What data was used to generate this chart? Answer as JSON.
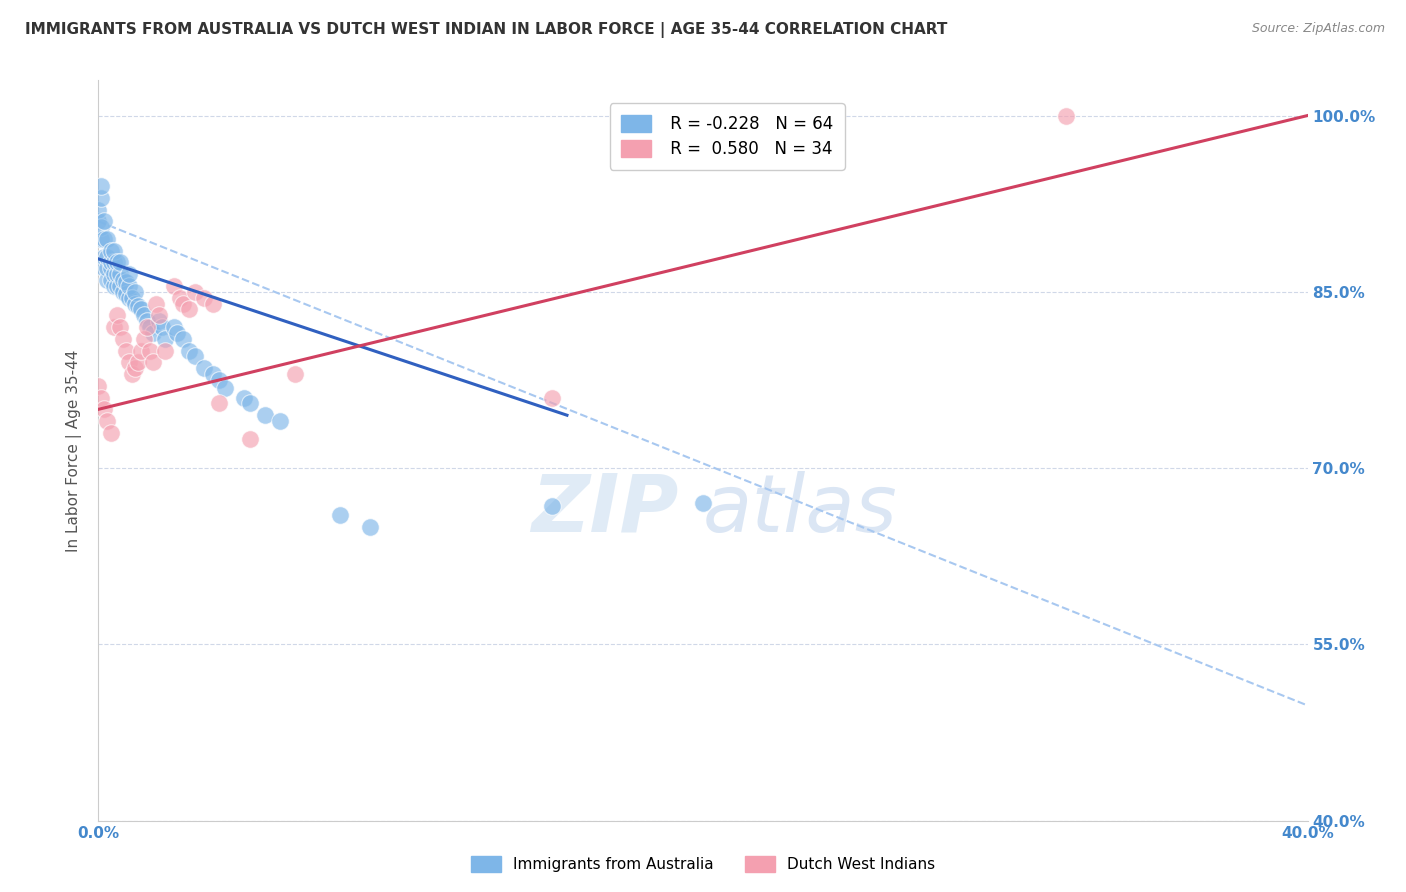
{
  "title": "IMMIGRANTS FROM AUSTRALIA VS DUTCH WEST INDIAN IN LABOR FORCE | AGE 35-44 CORRELATION CHART",
  "source": "Source: ZipAtlas.com",
  "ylabel": "In Labor Force | Age 35-44",
  "xlim": [
    0.0,
    0.4
  ],
  "ylim": [
    0.4,
    1.03
  ],
  "yticks": [
    0.4,
    0.55,
    0.7,
    0.85,
    1.0
  ],
  "ytick_labels": [
    "40.0%",
    "55.0%",
    "70.0%",
    "85.0%",
    "100.0%"
  ],
  "xticks": [
    0.0,
    0.05,
    0.1,
    0.15,
    0.2,
    0.25,
    0.3,
    0.35,
    0.4
  ],
  "xtick_labels": [
    "0.0%",
    "",
    "",
    "",
    "",
    "",
    "",
    "",
    "40.0%"
  ],
  "blue_color": "#7EB6E8",
  "pink_color": "#F4A0B0",
  "blue_line_color": "#3060C0",
  "pink_line_color": "#D04060",
  "dashed_line_color": "#A8C8F0",
  "grid_color": "#D0D8E8",
  "text_color": "#4488CC",
  "title_color": "#333333",
  "legend_R_blue": "-0.228",
  "legend_N_blue": "64",
  "legend_R_pink": "0.580",
  "legend_N_pink": "34",
  "legend_label_blue": "Immigrants from Australia",
  "legend_label_pink": "Dutch West Indians",
  "blue_scatter_x": [
    0.0,
    0.0,
    0.001,
    0.001,
    0.001,
    0.001,
    0.002,
    0.002,
    0.002,
    0.002,
    0.003,
    0.003,
    0.003,
    0.003,
    0.004,
    0.004,
    0.004,
    0.004,
    0.005,
    0.005,
    0.005,
    0.005,
    0.006,
    0.006,
    0.006,
    0.007,
    0.007,
    0.007,
    0.008,
    0.008,
    0.009,
    0.009,
    0.01,
    0.01,
    0.01,
    0.011,
    0.012,
    0.012,
    0.013,
    0.014,
    0.015,
    0.016,
    0.017,
    0.018,
    0.02,
    0.021,
    0.022,
    0.025,
    0.026,
    0.028,
    0.03,
    0.032,
    0.035,
    0.038,
    0.04,
    0.042,
    0.048,
    0.05,
    0.055,
    0.06,
    0.08,
    0.09,
    0.15,
    0.2
  ],
  "blue_scatter_y": [
    0.91,
    0.92,
    0.895,
    0.905,
    0.93,
    0.94,
    0.87,
    0.88,
    0.895,
    0.91,
    0.86,
    0.87,
    0.88,
    0.895,
    0.86,
    0.87,
    0.875,
    0.885,
    0.855,
    0.865,
    0.875,
    0.885,
    0.855,
    0.865,
    0.875,
    0.855,
    0.865,
    0.875,
    0.85,
    0.86,
    0.848,
    0.858,
    0.845,
    0.855,
    0.865,
    0.845,
    0.84,
    0.85,
    0.838,
    0.835,
    0.83,
    0.825,
    0.82,
    0.815,
    0.825,
    0.82,
    0.81,
    0.82,
    0.815,
    0.81,
    0.8,
    0.795,
    0.785,
    0.78,
    0.775,
    0.768,
    0.76,
    0.755,
    0.745,
    0.74,
    0.66,
    0.65,
    0.668,
    0.67
  ],
  "pink_scatter_x": [
    0.0,
    0.001,
    0.002,
    0.003,
    0.004,
    0.005,
    0.006,
    0.007,
    0.008,
    0.009,
    0.01,
    0.011,
    0.012,
    0.013,
    0.014,
    0.015,
    0.016,
    0.017,
    0.018,
    0.019,
    0.02,
    0.022,
    0.025,
    0.027,
    0.028,
    0.03,
    0.032,
    0.035,
    0.038,
    0.04,
    0.05,
    0.065,
    0.15,
    0.32
  ],
  "pink_scatter_y": [
    0.77,
    0.76,
    0.75,
    0.74,
    0.73,
    0.82,
    0.83,
    0.82,
    0.81,
    0.8,
    0.79,
    0.78,
    0.785,
    0.79,
    0.8,
    0.81,
    0.82,
    0.8,
    0.79,
    0.84,
    0.83,
    0.8,
    0.855,
    0.845,
    0.84,
    0.835,
    0.85,
    0.845,
    0.84,
    0.755,
    0.725,
    0.78,
    0.76,
    1.0
  ],
  "blue_line_x0": 0.0,
  "blue_line_y0": 0.878,
  "blue_line_x1": 0.155,
  "blue_line_y1": 0.745,
  "pink_line_x0": 0.0,
  "pink_line_y0": 0.75,
  "pink_line_x1": 0.4,
  "pink_line_y1": 1.0,
  "dashed_line_x0": 0.0,
  "dashed_line_y0": 0.91,
  "dashed_line_x1": 0.4,
  "dashed_line_y1": 0.498,
  "watermark_line1": "ZIP",
  "watermark_line2": "atlas"
}
